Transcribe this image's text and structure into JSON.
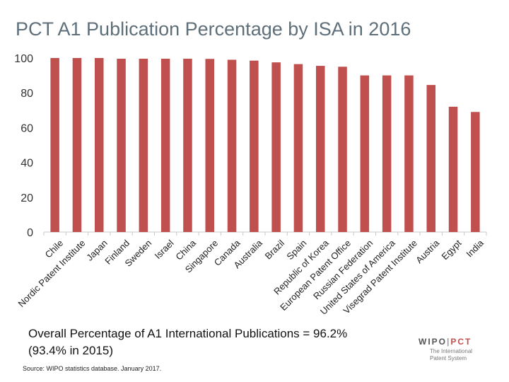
{
  "chart_data": {
    "type": "bar",
    "title": "PCT A1 Publication Percentage by ISA in 2016",
    "categories": [
      "Chile",
      "Nordic Patent Institute",
      "Japan",
      "Finland",
      "Sweden",
      "Israel",
      "China",
      "Singapore",
      "Canada",
      "Australia",
      "Brazil",
      "Spain",
      "Republic of Korea",
      "European Patent Office",
      "Russian Federation",
      "United States of America",
      "Visegrad Patent Institute",
      "Austria",
      "Egypt",
      "India"
    ],
    "values": [
      100,
      100,
      100,
      99.6,
      99.6,
      99.6,
      99.6,
      99.5,
      99.0,
      98.5,
      97.5,
      96.5,
      95.5,
      95.0,
      90.0,
      90.0,
      90.0,
      84.5,
      72.0,
      69.0
    ],
    "ylim": [
      0,
      100
    ],
    "yticks": [
      0,
      20,
      40,
      60,
      80,
      100
    ],
    "xlabel": "",
    "ylabel": "",
    "bar_color": "#c0504d"
  },
  "summary": {
    "line1": "Overall Percentage of A1 International Publications = 96.2%",
    "line2": "(93.4% in 2015)"
  },
  "source": "Source: WIPO statistics database. January 2017.",
  "logo": {
    "wipo": "WIPO",
    "separator": "|",
    "pct": "PCT",
    "tagline_1": "The International",
    "tagline_2": "Patent System",
    "wipo_color": "#555555",
    "pct_color": "#c0504d"
  }
}
